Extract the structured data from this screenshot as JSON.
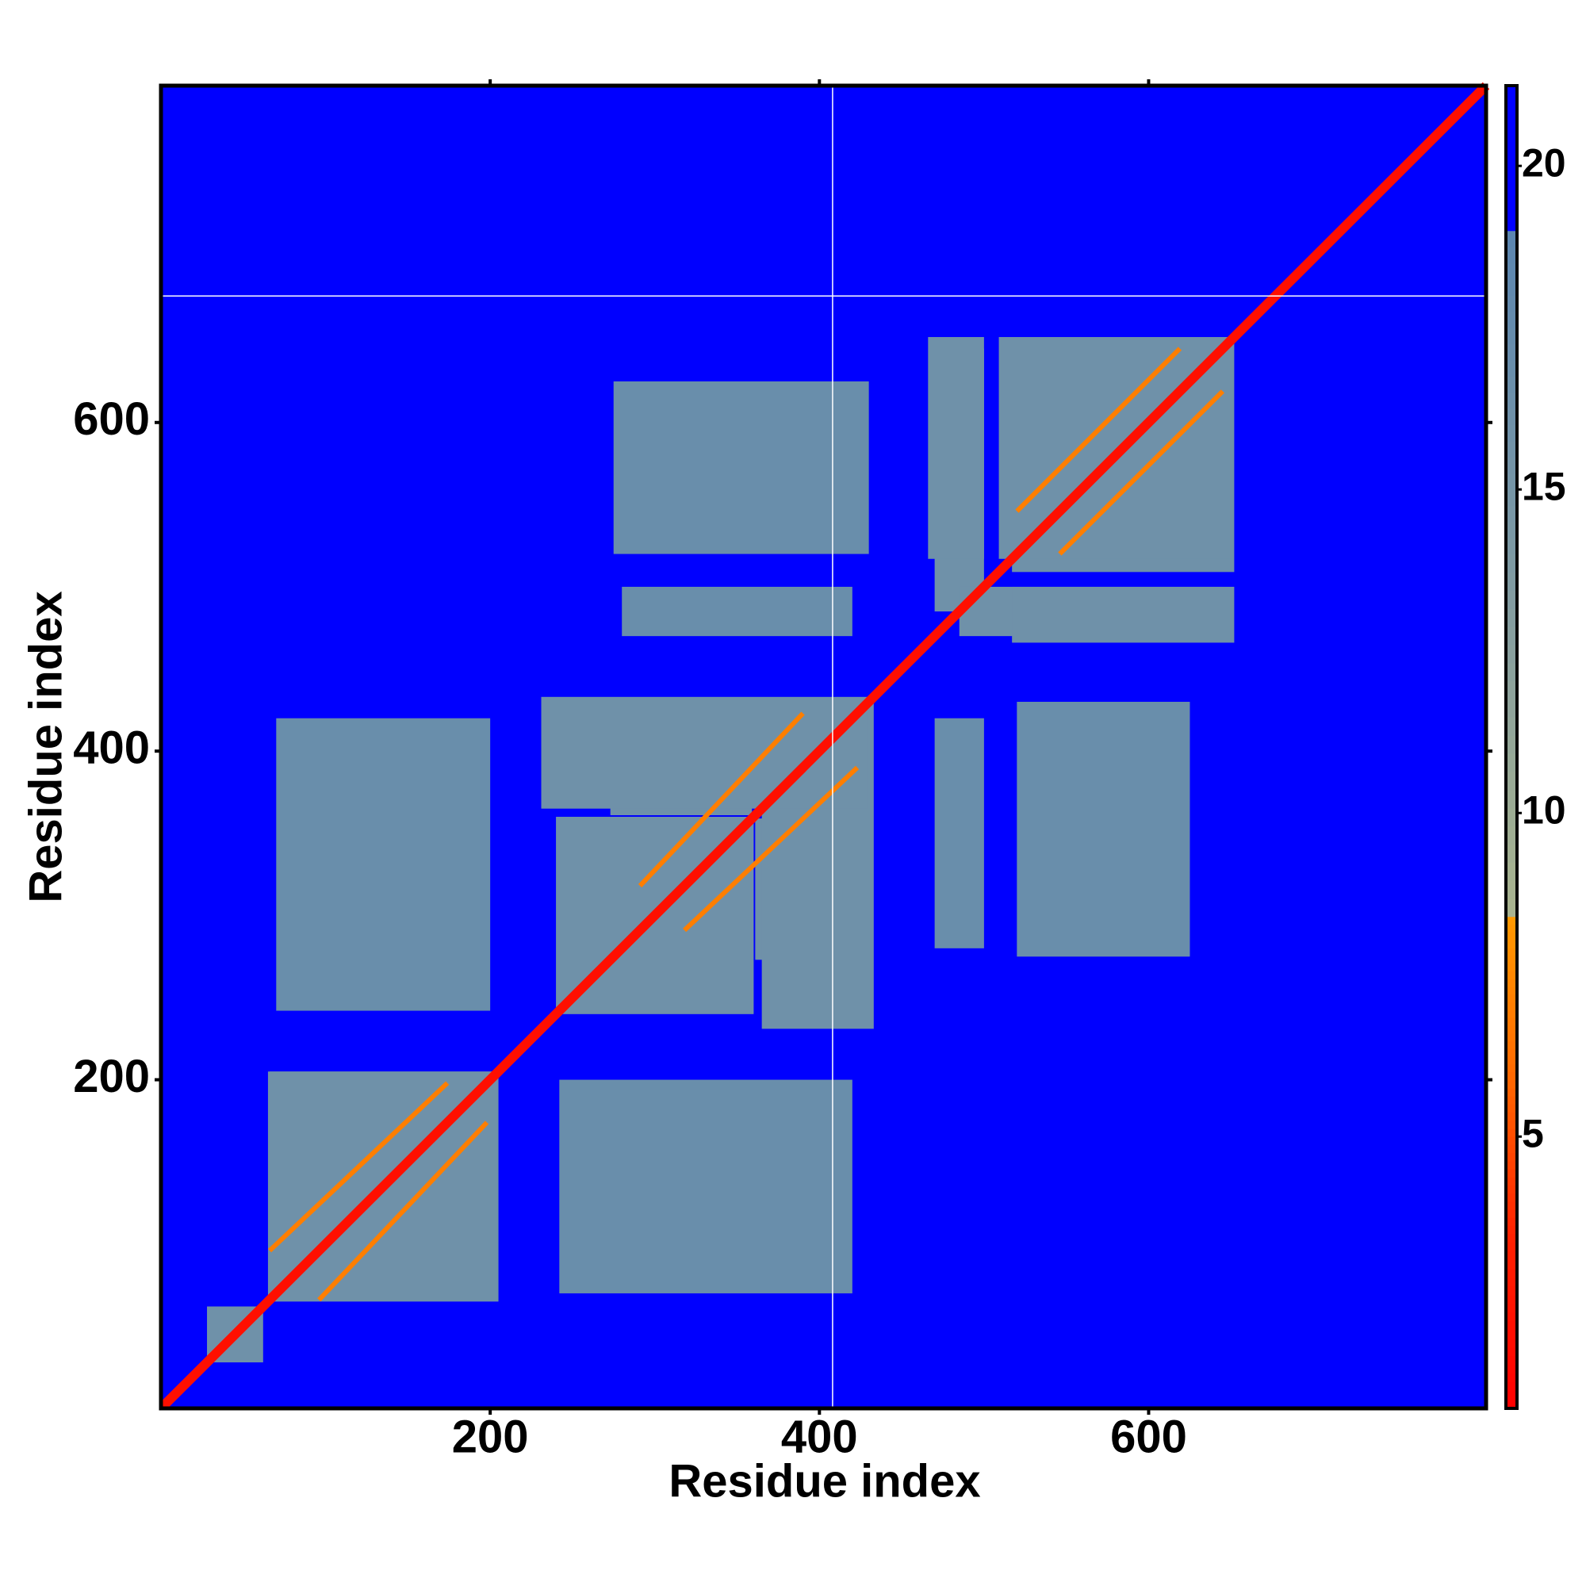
{
  "chart_data": {
    "type": "heatmap",
    "xlabel": "Residue index",
    "ylabel": "Residue index",
    "xlim": [
      0,
      805
    ],
    "ylim": [
      0,
      805
    ],
    "xticks": [
      200,
      400,
      600
    ],
    "yticks": [
      200,
      400,
      600
    ],
    "symmetric": true,
    "fill_value": 21,
    "vlines": [
      408
    ],
    "hlines": [
      677
    ],
    "colorscale": [
      [
        0.8,
        "#ff0000"
      ],
      [
        3.5,
        "#ff2200"
      ],
      [
        6,
        "#ff6a00"
      ],
      [
        8.4,
        "#ff9900"
      ],
      [
        8.4,
        "#a9b48e"
      ],
      [
        14,
        "#7d99a4"
      ],
      [
        19,
        "#5b86b0"
      ],
      [
        19,
        "#0000ff"
      ],
      [
        21.24,
        "#0000ff"
      ]
    ],
    "clim": [
      0.8,
      21.24
    ],
    "cticks": [
      5,
      10,
      15,
      20
    ],
    "cells": [
      {
        "x0": 66,
        "x1": 205,
        "y0": 65,
        "y1": 205,
        "value": 16
      },
      {
        "x0": 28,
        "x1": 62,
        "y0": 28,
        "y1": 62,
        "value": 16
      },
      {
        "x0": 242,
        "x1": 420,
        "y0": 70,
        "y1": 200,
        "value": 17
      },
      {
        "x0": 240,
        "x1": 360,
        "y0": 240,
        "y1": 360,
        "value": 16
      },
      {
        "x0": 273,
        "x1": 359,
        "y0": 361,
        "y1": 429,
        "value": 16
      },
      {
        "x0": 365,
        "x1": 433,
        "y0": 231,
        "y1": 429,
        "value": 16
      },
      {
        "x0": 470,
        "x1": 500,
        "y0": 280,
        "y1": 420,
        "value": 17
      },
      {
        "x0": 470,
        "x1": 500,
        "y0": 485,
        "y1": 645,
        "value": 16
      },
      {
        "x0": 517,
        "x1": 652,
        "y0": 509,
        "y1": 651,
        "value": 16
      },
      {
        "x0": 517,
        "x1": 652,
        "y0": 466,
        "y1": 500,
        "value": 16
      },
      {
        "x0": 520,
        "x1": 625,
        "y0": 275,
        "y1": 430,
        "value": 17
      },
      {
        "x0": 275,
        "x1": 430,
        "y0": 520,
        "y1": 625,
        "value": 17
      }
    ],
    "strands": [
      {
        "x0": 66,
        "y0": 96,
        "x1": 174,
        "y1": 198,
        "value": 7
      },
      {
        "x0": 291,
        "y0": 318,
        "x1": 390,
        "y1": 423,
        "value": 7
      },
      {
        "x0": 520,
        "y0": 546,
        "x1": 619,
        "y1": 645,
        "value": 7
      }
    ],
    "diagonal": [
      {
        "from": 1,
        "to": 805,
        "value": 2
      }
    ]
  }
}
